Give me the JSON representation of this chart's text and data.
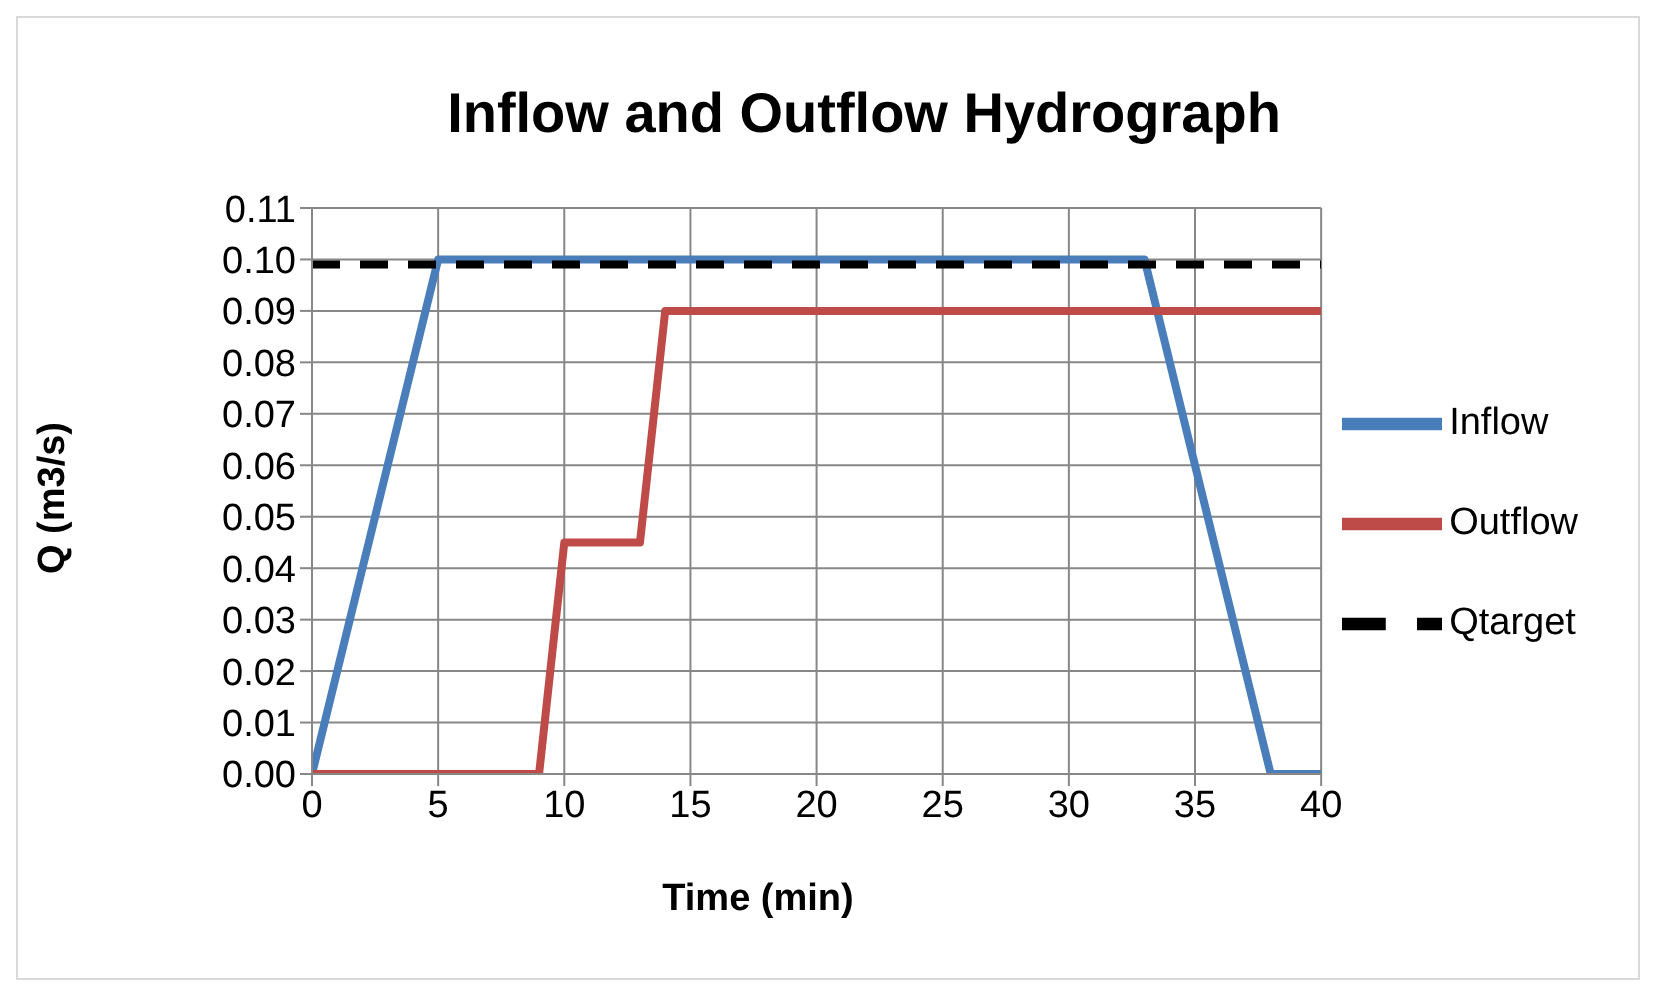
{
  "chart_data": {
    "type": "line",
    "title": "Inflow and Outflow Hydrograph",
    "xlabel": "Time (min)",
    "ylabel": "Q (m3/s)",
    "series": [
      {
        "name": "Inflow",
        "color": "#4a7ebb",
        "x": [
          0,
          5,
          33,
          38,
          40
        ],
        "values": [
          0,
          0.1,
          0.1,
          0,
          0
        ]
      },
      {
        "name": "Outflow",
        "color": "#be4b48",
        "x": [
          0,
          9,
          10,
          13,
          14,
          40
        ],
        "values": [
          0,
          0,
          0.045,
          0.045,
          0.09,
          0.09
        ]
      },
      {
        "name": "Qtarget",
        "color": "#000000",
        "line_style": "dashed",
        "x": [
          0,
          40
        ],
        "values": [
          0.099,
          0.099
        ]
      }
    ],
    "xlim": [
      0,
      40
    ],
    "xticks": [
      0,
      5,
      10,
      15,
      20,
      25,
      30,
      35,
      40
    ],
    "ylim": [
      0,
      0.11
    ],
    "yticks": [
      {
        "value": 0,
        "label": "0.00"
      },
      0.01,
      0.02,
      0.03,
      0.04,
      0.05,
      0.06,
      0.07,
      0.08,
      0.09,
      {
        "value": 0.1,
        "label": "0.10"
      },
      0.11
    ],
    "grid": true,
    "legend": "right",
    "marker": "none"
  }
}
